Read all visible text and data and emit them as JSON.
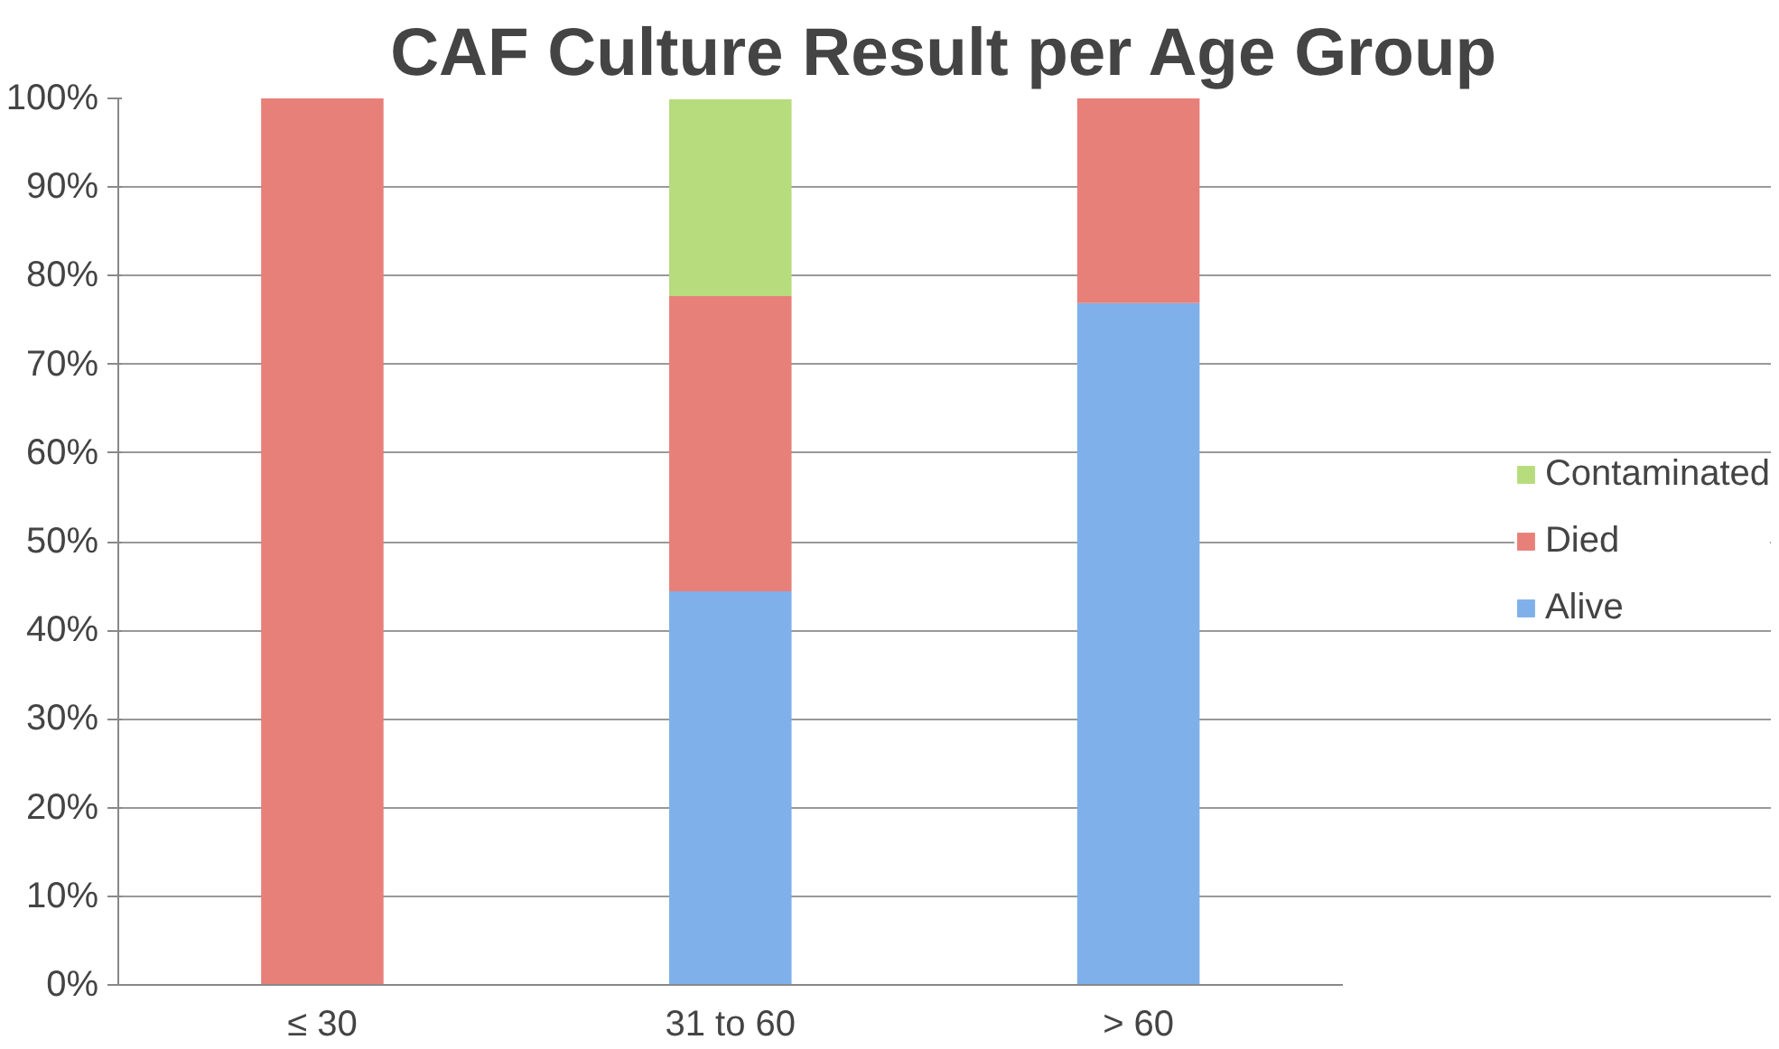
{
  "chart_data": {
    "type": "bar",
    "title": "CAF Culture Result per Age Group",
    "stacked": true,
    "categories": [
      "≤ 30",
      "31 to 60",
      "> 60"
    ],
    "series": [
      {
        "name": "Alive",
        "color": "#7fb0ea",
        "values": [
          0,
          44.4,
          76.9
        ]
      },
      {
        "name": "Died",
        "color": "#e8807a",
        "values": [
          100,
          33.3,
          23.1
        ]
      },
      {
        "name": "Contaminated",
        "color": "#b6dc7e",
        "values": [
          0,
          22.2,
          0
        ]
      }
    ],
    "ylim": [
      0,
      100
    ],
    "yticks": [
      {
        "value": 0,
        "label": "0%"
      },
      {
        "value": 10,
        "label": "10%"
      },
      {
        "value": 20,
        "label": "20%"
      },
      {
        "value": 30,
        "label": "30%"
      },
      {
        "value": 40,
        "label": "40%"
      },
      {
        "value": 50,
        "label": "50%"
      },
      {
        "value": 60,
        "label": "60%"
      },
      {
        "value": 70,
        "label": "70%"
      },
      {
        "value": 80,
        "label": "80%"
      },
      {
        "value": 90,
        "label": "90%"
      },
      {
        "value": 100,
        "label": "100%"
      }
    ],
    "grid": "y",
    "legend": "right"
  }
}
